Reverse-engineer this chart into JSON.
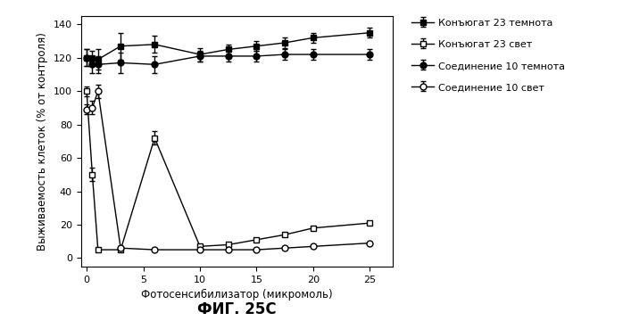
{
  "title": "ФИГ. 25C",
  "xlabel": "Фотосенсибилизатор (микромоль)",
  "ylabel": "Выживаемость клеток (% от контроля)",
  "xlim": [
    -0.5,
    27
  ],
  "ylim": [
    -5,
    145
  ],
  "yticks": [
    0,
    20,
    40,
    60,
    80,
    100,
    120,
    140
  ],
  "xticks": [
    0,
    5,
    10,
    15,
    20,
    25
  ],
  "conjugate23_dark_x": [
    0,
    0.5,
    1,
    3,
    6,
    10,
    12.5,
    15,
    17.5,
    20,
    25
  ],
  "conjugate23_dark_y": [
    120,
    120,
    119,
    127,
    128,
    122,
    125,
    127,
    129,
    132,
    135
  ],
  "conjugate23_dark_yerr": [
    5,
    4,
    6,
    8,
    5,
    4,
    3,
    3,
    3,
    3,
    3
  ],
  "conjugate23_light_x": [
    0,
    0.5,
    1,
    3,
    6,
    10,
    12.5,
    15,
    17.5,
    20,
    25
  ],
  "conjugate23_light_y": [
    100,
    50,
    5,
    5,
    72,
    7,
    8,
    11,
    14,
    18,
    21
  ],
  "conjugate23_light_yerr": [
    3,
    4,
    1,
    1,
    4,
    1,
    1,
    1,
    1,
    1,
    1
  ],
  "compound10_dark_x": [
    0,
    0.5,
    1,
    3,
    6,
    10,
    12.5,
    15,
    17.5,
    20,
    25
  ],
  "compound10_dark_y": [
    120,
    116,
    116,
    117,
    116,
    121,
    121,
    121,
    122,
    122,
    122
  ],
  "compound10_dark_yerr": [
    5,
    5,
    5,
    6,
    5,
    3,
    3,
    3,
    3,
    3,
    3
  ],
  "compound10_light_x": [
    0,
    0.5,
    1,
    3,
    6,
    10,
    12.5,
    15,
    17.5,
    20,
    25
  ],
  "compound10_light_y": [
    89,
    90,
    100,
    6,
    5,
    5,
    5,
    5,
    6,
    7,
    9
  ],
  "compound10_light_yerr": [
    3,
    4,
    4,
    1,
    1,
    1,
    1,
    1,
    1,
    1,
    1
  ],
  "legend_labels": [
    "Конъюгат 23 темнота",
    "Конъюгат 23 свет",
    "Соединение 10 темнота",
    "Соединение 10 свет"
  ],
  "color": "#000000",
  "bg_color": "#ffffff"
}
